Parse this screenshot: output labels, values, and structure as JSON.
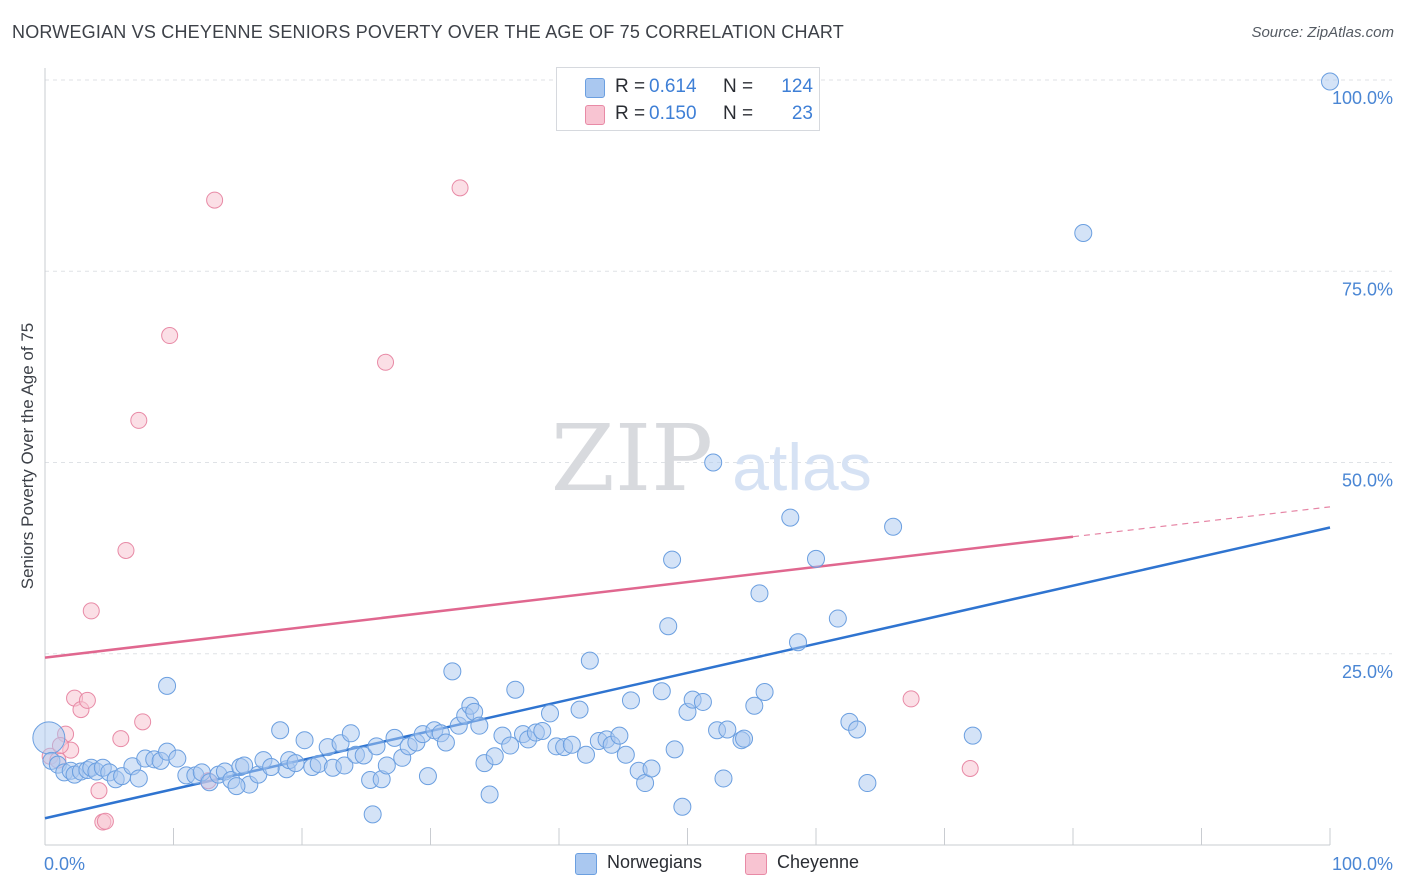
{
  "header": {
    "title": "NORWEGIAN VS CHEYENNE SENIORS POVERTY OVER THE AGE OF 75 CORRELATION CHART",
    "source": "Source: ZipAtlas.com"
  },
  "watermark": {
    "zip": "ZIP",
    "atlas": "atlas"
  },
  "legend": {
    "rows": [
      {
        "r_label": "R =",
        "r_value": "0.614",
        "n_label": "N =",
        "n_value": "124",
        "color": "#aac8f0",
        "border": "#6b9fe0"
      },
      {
        "r_label": "R =",
        "r_value": "0.150",
        "n_label": "N =",
        "n_value": "23",
        "color": "#f8c4d2",
        "border": "#e88aa6"
      }
    ],
    "bottom": [
      {
        "label": "Norwegians",
        "color": "#aac8f0",
        "border": "#6b9fe0"
      },
      {
        "label": "Cheyenne",
        "color": "#f8c4d2",
        "border": "#e88aa6"
      }
    ]
  },
  "chart_data": {
    "type": "scatter",
    "title": "NORWEGIAN VS CHEYENNE SENIORS POVERTY OVER THE AGE OF 75 CORRELATION CHART",
    "xlabel": "",
    "ylabel": "Seniors Poverty Over the Age of 75",
    "xlim": [
      0,
      100
    ],
    "ylim": [
      0,
      100
    ],
    "x_tick_labels": [
      "0.0%",
      "100.0%"
    ],
    "y_tick_labels": [
      "100.0%",
      "75.0%",
      "50.0%",
      "25.0%"
    ],
    "y_ticks": [
      100,
      75,
      50,
      25
    ],
    "grid": true,
    "legend_position": "top-center",
    "colors": {
      "norwegians_fill": "#aac8f0",
      "norwegians_stroke": "#6b9fe0",
      "norwegians_line": "#2f74d0",
      "cheyenne_fill": "#f8c4d2",
      "cheyenne_stroke": "#e88aa6",
      "cheyenne_line": "#e0678f"
    },
    "series": [
      {
        "name": "Norwegians",
        "trend": {
          "x": [
            0,
            100
          ],
          "y": [
            3.5,
            41.5
          ]
        },
        "points": [
          [
            0.3,
            14.0
          ],
          [
            0.5,
            11.0
          ],
          [
            1.0,
            10.5
          ],
          [
            1.5,
            9.5
          ],
          [
            2.0,
            9.7
          ],
          [
            2.3,
            9.2
          ],
          [
            2.8,
            9.6
          ],
          [
            3.3,
            9.8
          ],
          [
            3.6,
            10.1
          ],
          [
            4.0,
            9.6
          ],
          [
            4.5,
            10.1
          ],
          [
            5.0,
            9.5
          ],
          [
            5.5,
            8.6
          ],
          [
            6.0,
            9.0
          ],
          [
            6.8,
            10.3
          ],
          [
            7.3,
            8.7
          ],
          [
            7.8,
            11.3
          ],
          [
            8.5,
            11.2
          ],
          [
            9.0,
            11.0
          ],
          [
            9.5,
            12.2
          ],
          [
            10.3,
            11.3
          ],
          [
            11.0,
            9.1
          ],
          [
            11.7,
            9.1
          ],
          [
            12.2,
            9.5
          ],
          [
            12.8,
            8.2
          ],
          [
            13.5,
            9.2
          ],
          [
            14.0,
            9.6
          ],
          [
            14.5,
            8.5
          ],
          [
            15.2,
            10.2
          ],
          [
            15.5,
            10.4
          ],
          [
            15.9,
            7.9
          ],
          [
            16.6,
            9.2
          ],
          [
            17.0,
            11.1
          ],
          [
            17.6,
            10.2
          ],
          [
            18.3,
            15.0
          ],
          [
            18.8,
            9.9
          ],
          [
            19.0,
            11.1
          ],
          [
            19.5,
            10.7
          ],
          [
            20.2,
            13.7
          ],
          [
            20.8,
            10.2
          ],
          [
            21.3,
            10.6
          ],
          [
            22.0,
            12.8
          ],
          [
            22.4,
            10.1
          ],
          [
            23.0,
            13.3
          ],
          [
            23.3,
            10.4
          ],
          [
            23.8,
            14.6
          ],
          [
            24.2,
            11.8
          ],
          [
            24.8,
            11.7
          ],
          [
            25.3,
            8.5
          ],
          [
            25.8,
            12.9
          ],
          [
            26.2,
            8.6
          ],
          [
            26.6,
            10.4
          ],
          [
            27.2,
            14.0
          ],
          [
            27.8,
            11.4
          ],
          [
            28.3,
            12.9
          ],
          [
            28.9,
            13.4
          ],
          [
            29.4,
            14.5
          ],
          [
            29.8,
            9.0
          ],
          [
            30.3,
            15.0
          ],
          [
            30.8,
            14.6
          ],
          [
            31.2,
            13.4
          ],
          [
            31.7,
            22.7
          ],
          [
            32.2,
            15.6
          ],
          [
            32.7,
            16.9
          ],
          [
            33.1,
            18.2
          ],
          [
            33.4,
            17.4
          ],
          [
            33.8,
            15.6
          ],
          [
            34.2,
            10.7
          ],
          [
            34.6,
            6.6
          ],
          [
            35.0,
            11.6
          ],
          [
            35.6,
            14.3
          ],
          [
            36.2,
            13.0
          ],
          [
            36.6,
            20.3
          ],
          [
            37.2,
            14.5
          ],
          [
            37.6,
            13.8
          ],
          [
            38.2,
            14.7
          ],
          [
            38.7,
            14.9
          ],
          [
            39.3,
            17.2
          ],
          [
            39.8,
            12.9
          ],
          [
            40.4,
            12.8
          ],
          [
            41.0,
            13.1
          ],
          [
            41.6,
            17.7
          ],
          [
            42.1,
            11.8
          ],
          [
            42.4,
            24.1
          ],
          [
            43.1,
            13.6
          ],
          [
            43.7,
            13.8
          ],
          [
            44.1,
            13.1
          ],
          [
            44.7,
            14.3
          ],
          [
            45.2,
            11.8
          ],
          [
            45.6,
            18.9
          ],
          [
            46.2,
            9.7
          ],
          [
            46.7,
            8.1
          ],
          [
            47.2,
            10.0
          ],
          [
            48.0,
            20.1
          ],
          [
            48.5,
            28.6
          ],
          [
            48.8,
            37.3
          ],
          [
            49.6,
            5.0
          ],
          [
            50.0,
            17.4
          ],
          [
            50.4,
            19.0
          ],
          [
            51.2,
            18.7
          ],
          [
            52.0,
            50.0
          ],
          [
            52.3,
            15.0
          ],
          [
            52.8,
            8.7
          ],
          [
            53.1,
            15.1
          ],
          [
            54.2,
            13.7
          ],
          [
            54.4,
            13.9
          ],
          [
            55.2,
            18.2
          ],
          [
            56.0,
            20.0
          ],
          [
            55.6,
            32.9
          ],
          [
            58.0,
            42.8
          ],
          [
            58.6,
            26.5
          ],
          [
            60.0,
            37.4
          ],
          [
            61.7,
            29.6
          ],
          [
            62.6,
            16.1
          ],
          [
            63.2,
            15.1
          ],
          [
            64.0,
            8.1
          ],
          [
            66.0,
            41.6
          ],
          [
            72.2,
            14.3
          ],
          [
            80.8,
            80.0
          ],
          [
            100.0,
            99.8
          ],
          [
            9.5,
            20.8
          ],
          [
            25.5,
            4.0
          ],
          [
            49.0,
            12.5
          ],
          [
            14.9,
            7.7
          ]
        ]
      },
      {
        "name": "Cheyenne",
        "trend": {
          "x": [
            0,
            80
          ],
          "y": [
            24.5,
            40.3
          ]
        },
        "trend_dashed": {
          "x": [
            80,
            100
          ],
          "y": [
            40.3,
            44.2
          ]
        },
        "points": [
          [
            0.4,
            11.6
          ],
          [
            1.0,
            11.1
          ],
          [
            1.6,
            14.5
          ],
          [
            2.0,
            12.4
          ],
          [
            2.3,
            19.2
          ],
          [
            2.8,
            17.7
          ],
          [
            3.3,
            18.9
          ],
          [
            3.6,
            30.6
          ],
          [
            4.2,
            7.1
          ],
          [
            4.5,
            3.0
          ],
          [
            4.7,
            3.1
          ],
          [
            5.9,
            13.9
          ],
          [
            6.3,
            38.5
          ],
          [
            7.3,
            55.5
          ],
          [
            7.6,
            16.1
          ],
          [
            9.7,
            66.6
          ],
          [
            12.7,
            8.4
          ],
          [
            13.2,
            84.3
          ],
          [
            26.5,
            63.1
          ],
          [
            32.3,
            85.9
          ],
          [
            67.4,
            19.1
          ],
          [
            72.0,
            10.0
          ],
          [
            1.2,
            13.0
          ]
        ]
      }
    ]
  }
}
